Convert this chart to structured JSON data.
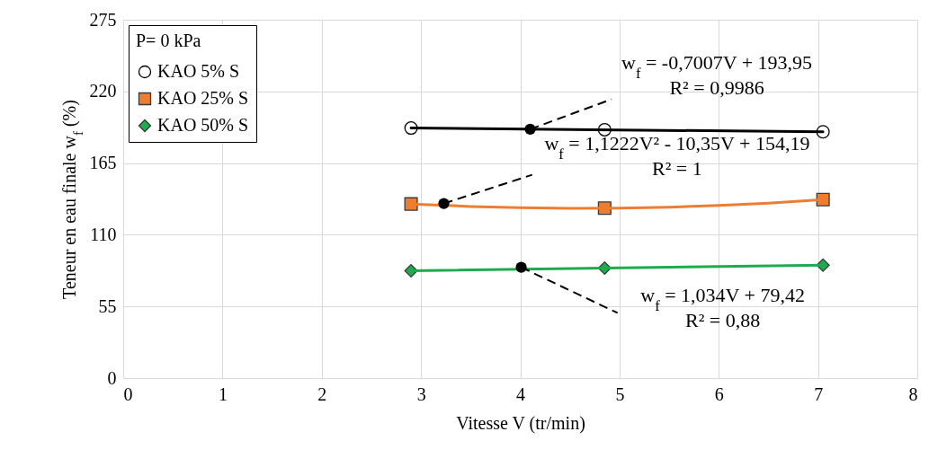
{
  "chart_data": {
    "type": "scatter",
    "xlabel": "Vitesse V (tr/min)",
    "ylabel": "Teneur en eau finale w$_{f}$ (%)",
    "legend_title": "P= 0 kPa",
    "legend": "top left",
    "grid": true,
    "xlim": [
      0,
      8
    ],
    "xticks": [
      0,
      1,
      2,
      3,
      4,
      5,
      6,
      7,
      8
    ],
    "ylim": [
      0,
      275
    ],
    "yticks": [
      0,
      55,
      110,
      165,
      220,
      275
    ],
    "series": [
      {
        "name": "KAO 5% S",
        "marker": "circle",
        "color": "#000000",
        "x": [
          2.9,
          4.85,
          7.05
        ],
        "values": [
          191.9,
          190.6,
          189.0
        ]
      },
      {
        "name": "KAO 25% S",
        "marker": "square",
        "color": "#ed7d31",
        "x": [
          2.9,
          4.85,
          7.05
        ],
        "values": [
          133.6,
          130.4,
          137.0
        ]
      },
      {
        "name": "KAO 50% S",
        "marker": "diamond",
        "color": "#1faa4f",
        "x": [
          2.9,
          4.85,
          7.05
        ],
        "values": [
          82.4,
          84.4,
          86.7
        ]
      },
      {
        "type": "line",
        "color": "#000000",
        "x": [
          2.9,
          7.05
        ],
        "values": [
          191.9,
          189.0
        ]
      },
      {
        "type": "line",
        "color": "#ed7d31",
        "x": [
          2.9,
          3.5,
          4,
          4.5,
          5,
          5.5,
          6,
          6.5,
          7.05
        ],
        "values": [
          133.6,
          131.7,
          130.8,
          130.3,
          130.5,
          131.2,
          132.5,
          134.3,
          137.0
        ]
      },
      {
        "type": "line",
        "color": "#1faa4f",
        "x": [
          2.9,
          7.05
        ],
        "values": [
          82.4,
          86.7
        ]
      }
    ],
    "annotations": [
      {
        "text": "w$_{f}$ = -0,7007V + 193,95\nR² = 0,9986",
        "x": 4.1,
        "y": 191
      },
      {
        "text": "w$_{f}$ = 1,1222V² - 10,35V + 154,19\nR² = 1",
        "x": 3.23,
        "y": 134
      },
      {
        "text": "w$_{f}$ = 1,034V + 79,42\nR² = 0,88",
        "x": 4.01,
        "y": 85
      }
    ]
  }
}
